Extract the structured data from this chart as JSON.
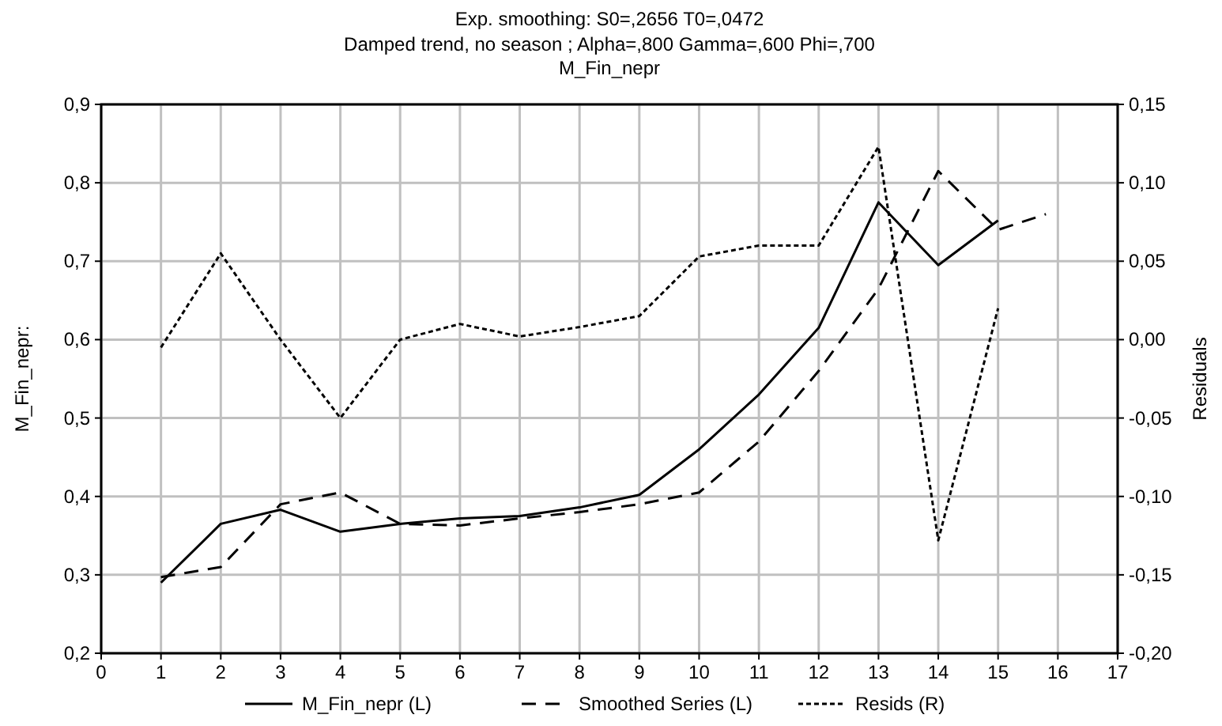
{
  "chart_data": {
    "type": "line",
    "title": "Exp. smoothing:  S0=,2656 T0=,0472",
    "subtitle": "Damped trend,    no season   ; Alpha=,800 Gamma=,600 Phi=,700",
    "annotations": [
      "M_Fin_nepr"
    ],
    "ylabel": "M_Fin_nepr:",
    "y2label": "Residuals",
    "x": [
      1,
      2,
      3,
      4,
      5,
      6,
      7,
      8,
      9,
      10,
      11,
      12,
      13,
      14,
      15
    ],
    "series": [
      {
        "name": "M_Fin_nepr (L)",
        "color": "#000000",
        "line_style": "solid",
        "values": [
          0.29,
          0.365,
          0.383,
          0.355,
          0.365,
          0.372,
          0.375,
          0.386,
          0.402,
          0.46,
          0.53,
          0.615,
          0.775,
          0.695,
          0.752
        ]
      },
      {
        "name": "Smoothed Series (L)",
        "color": "#000000",
        "line_style": "dashed",
        "x": [
          1,
          2,
          3,
          4,
          5,
          6,
          7,
          8,
          9,
          10,
          11,
          12,
          13,
          14,
          15,
          15.8
        ],
        "values": [
          0.297,
          0.31,
          0.39,
          0.405,
          0.365,
          0.363,
          0.372,
          0.38,
          0.39,
          0.405,
          0.47,
          0.56,
          0.665,
          0.815,
          0.74,
          0.76
        ]
      },
      {
        "name": "Resids (R)",
        "color": "#000000",
        "line_style": "dotted",
        "axis": "y2",
        "values": [
          -0.005,
          0.055,
          0.0,
          -0.05,
          0.0,
          0.01,
          0.002,
          0.008,
          0.015,
          0.053,
          0.06,
          0.06,
          0.123,
          -0.128,
          0.02
        ]
      }
    ],
    "xlim": [
      0,
      17
    ],
    "xticks": [
      0,
      1,
      2,
      3,
      4,
      5,
      6,
      7,
      8,
      9,
      10,
      11,
      12,
      13,
      14,
      15,
      16,
      17
    ],
    "ylim": [
      0.2,
      0.9
    ],
    "yticks": [
      {
        "value": 0.2,
        "label": "0,2"
      },
      {
        "value": 0.3,
        "label": "0,3"
      },
      {
        "value": 0.4,
        "label": "0,4"
      },
      {
        "value": 0.5,
        "label": "0,5"
      },
      {
        "value": 0.6,
        "label": "0,6"
      },
      {
        "value": 0.7,
        "label": "0,7"
      },
      {
        "value": 0.8,
        "label": "0,8"
      },
      {
        "value": 0.9,
        "label": "0,9"
      }
    ],
    "y2lim": [
      -0.2,
      0.15
    ],
    "y2ticks": [
      {
        "value": -0.2,
        "label": "-0,20"
      },
      {
        "value": -0.15,
        "label": "-0,15"
      },
      {
        "value": -0.1,
        "label": "-0,10"
      },
      {
        "value": -0.05,
        "label": "-0,05"
      },
      {
        "value": 0,
        "label": "0,00"
      },
      {
        "value": 0.05,
        "label": "0,05"
      },
      {
        "value": 0.1,
        "label": "0,10"
      },
      {
        "value": 0.15,
        "label": "0,15"
      }
    ],
    "grid": true,
    "legend": "bottom",
    "marker": "none"
  }
}
